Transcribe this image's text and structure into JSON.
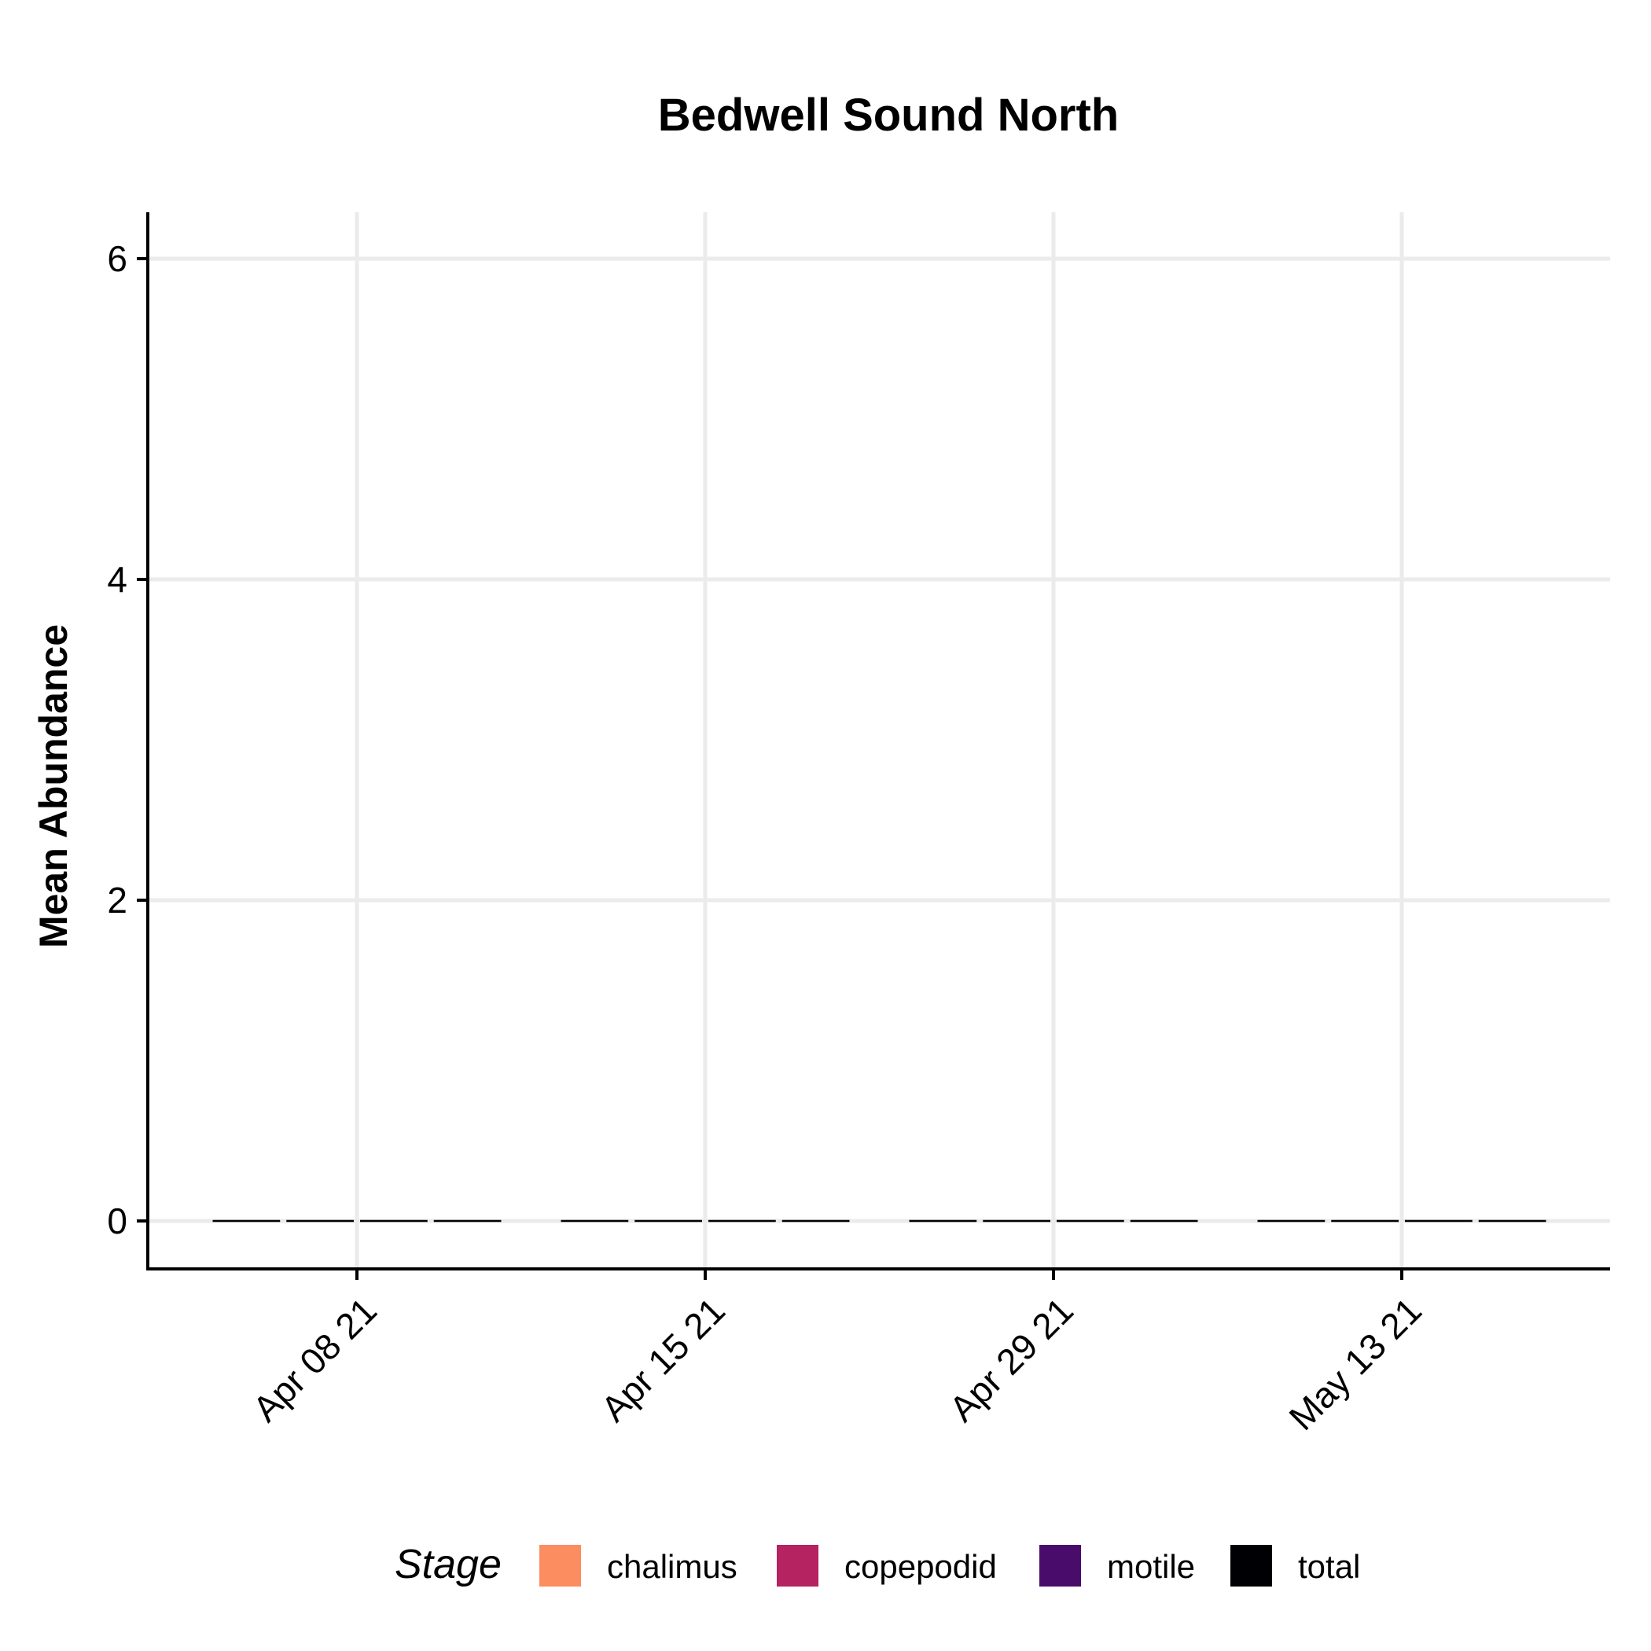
{
  "chart_data": {
    "type": "bar",
    "title": "Bedwell Sound North",
    "xlabel": "",
    "ylabel": "Mean Abundance",
    "categories": [
      "Apr 08 21",
      "Apr 15 21",
      "Apr 29 21",
      "May 13 21"
    ],
    "ylim": [
      0,
      6
    ],
    "yticks": [
      0,
      2,
      4,
      6
    ],
    "grid": true,
    "legend": {
      "title": "Stage",
      "position": "bottom"
    },
    "series": [
      {
        "name": "chalimus",
        "color": "#FB8D60",
        "values": [
          0,
          0,
          0,
          0
        ]
      },
      {
        "name": "copepodid",
        "color": "#B52361",
        "values": [
          0,
          0,
          0,
          0
        ]
      },
      {
        "name": "motile",
        "color": "#4A0C6B",
        "values": [
          0,
          0,
          0,
          0
        ]
      },
      {
        "name": "total",
        "color": "#000004",
        "values": [
          0,
          0,
          0,
          0
        ]
      }
    ]
  }
}
